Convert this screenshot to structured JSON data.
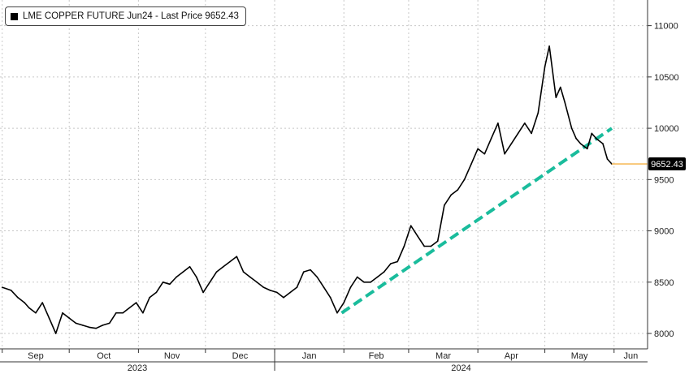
{
  "legend": {
    "label": "LME COPPER FUTURE Jun24 - Last Price 9652.43"
  },
  "colors": {
    "series": "#000000",
    "trendline": "#1ABC9C",
    "last_price_line": "#F5B041",
    "grid": "#c8c8c8",
    "last_price_badge": "#000000"
  },
  "chart_data": {
    "type": "line",
    "title": "",
    "xlabel": "",
    "ylabel": "",
    "ylim": [
      7850,
      11250
    ],
    "y_ticks": [
      8000,
      8500,
      9000,
      9500,
      10000,
      10500,
      11000
    ],
    "x_ticks": [
      {
        "label": "Sep",
        "date": "2023-09-01"
      },
      {
        "label": "Oct",
        "date": "2023-10-01"
      },
      {
        "label": "Nov",
        "date": "2023-11-01"
      },
      {
        "label": "Dec",
        "date": "2023-12-01"
      },
      {
        "label": "Jan",
        "date": "2024-01-01"
      },
      {
        "label": "Feb",
        "date": "2024-02-01"
      },
      {
        "label": "Mar",
        "date": "2024-03-01"
      },
      {
        "label": "Apr",
        "date": "2024-04-01"
      },
      {
        "label": "May",
        "date": "2024-05-01"
      },
      {
        "label": "Jun",
        "date": "2024-06-01"
      }
    ],
    "year_labels": [
      "2023",
      "2024"
    ],
    "xlim": [
      "2023-08-31",
      "2024-06-16"
    ],
    "grid": true,
    "legend_position": "top-left",
    "last_price": {
      "value": 9652.43,
      "label": "9652.43"
    },
    "series": [
      {
        "name": "LME COPPER FUTURE Jun24",
        "x": [
          "2023-09-01",
          "2023-09-05",
          "2023-09-08",
          "2023-09-11",
          "2023-09-13",
          "2023-09-16",
          "2023-09-19",
          "2023-09-22",
          "2023-09-25",
          "2023-09-28",
          "2023-10-01",
          "2023-10-04",
          "2023-10-07",
          "2023-10-10",
          "2023-10-13",
          "2023-10-16",
          "2023-10-19",
          "2023-10-22",
          "2023-10-25",
          "2023-10-28",
          "2023-10-31",
          "2023-11-03",
          "2023-11-06",
          "2023-11-09",
          "2023-11-12",
          "2023-11-15",
          "2023-11-18",
          "2023-11-21",
          "2023-11-24",
          "2023-11-27",
          "2023-11-30",
          "2023-12-03",
          "2023-12-06",
          "2023-12-09",
          "2023-12-12",
          "2023-12-15",
          "2023-12-18",
          "2023-12-21",
          "2023-12-24",
          "2023-12-27",
          "2023-12-30",
          "2024-01-02",
          "2024-01-05",
          "2024-01-08",
          "2024-01-11",
          "2024-01-14",
          "2024-01-17",
          "2024-01-20",
          "2024-01-23",
          "2024-01-26",
          "2024-01-29",
          "2024-02-01",
          "2024-02-04",
          "2024-02-07",
          "2024-02-10",
          "2024-02-13",
          "2024-02-16",
          "2024-02-19",
          "2024-02-22",
          "2024-02-25",
          "2024-02-28",
          "2024-03-02",
          "2024-03-05",
          "2024-03-08",
          "2024-03-11",
          "2024-03-14",
          "2024-03-17",
          "2024-03-20",
          "2024-03-23",
          "2024-03-26",
          "2024-03-29",
          "2024-04-01",
          "2024-04-04",
          "2024-04-07",
          "2024-04-10",
          "2024-04-13",
          "2024-04-16",
          "2024-04-19",
          "2024-04-22",
          "2024-04-25",
          "2024-04-28",
          "2024-05-01",
          "2024-05-03",
          "2024-05-06",
          "2024-05-08",
          "2024-05-10",
          "2024-05-13",
          "2024-05-15",
          "2024-05-17",
          "2024-05-20",
          "2024-05-22",
          "2024-05-24",
          "2024-05-27",
          "2024-05-29",
          "2024-05-31"
        ],
        "values": [
          8450,
          8420,
          8350,
          8300,
          8250,
          8200,
          8300,
          8150,
          8000,
          8200,
          8150,
          8100,
          8080,
          8060,
          8050,
          8080,
          8100,
          8200,
          8200,
          8250,
          8300,
          8200,
          8350,
          8400,
          8500,
          8480,
          8550,
          8600,
          8650,
          8550,
          8400,
          8500,
          8600,
          8650,
          8700,
          8750,
          8600,
          8550,
          8500,
          8450,
          8420,
          8400,
          8350,
          8400,
          8450,
          8600,
          8620,
          8550,
          8450,
          8350,
          8200,
          8300,
          8450,
          8550,
          8500,
          8500,
          8550,
          8600,
          8680,
          8700,
          8850,
          9050,
          8950,
          8850,
          8850,
          8900,
          9250,
          9350,
          9400,
          9500,
          9650,
          9800,
          9750,
          9900,
          10050,
          9750,
          9850,
          9950,
          10050,
          9950,
          10150,
          10600,
          10800,
          10300,
          10400,
          10250,
          10000,
          9900,
          9850,
          9800,
          9950,
          9900,
          9850,
          9700,
          9652
        ]
      }
    ],
    "trendline": {
      "x": [
        "2024-01-31",
        "2024-05-31"
      ],
      "values": [
        8200,
        10000
      ]
    }
  }
}
